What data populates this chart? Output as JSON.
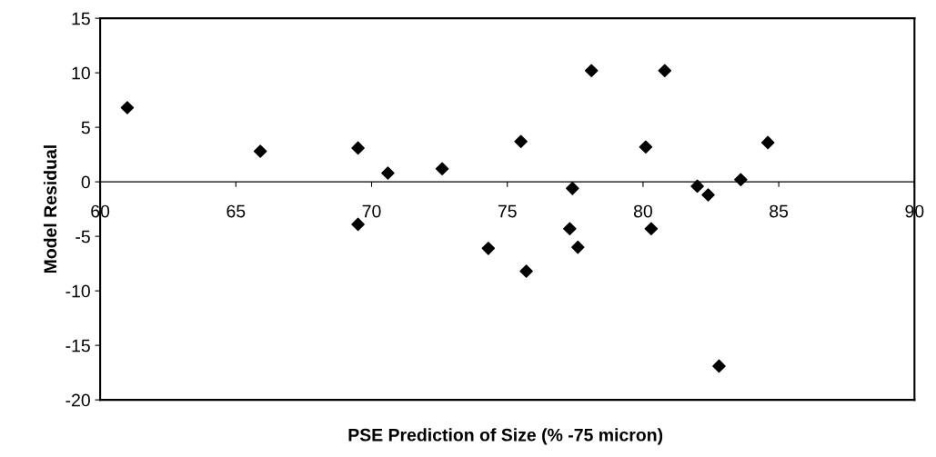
{
  "chart_data": {
    "type": "scatter",
    "xlabel": "PSE Prediction of Size (% -75 micron)",
    "ylabel": "Model Residual",
    "x": [
      61.0,
      65.9,
      69.5,
      70.6,
      72.6,
      69.5,
      75.5,
      78.1,
      80.8,
      80.1,
      84.6,
      77.4,
      82.0,
      82.4,
      83.6,
      74.3,
      75.7,
      77.3,
      77.6,
      80.3,
      82.8
    ],
    "values": [
      6.8,
      2.8,
      3.1,
      0.8,
      1.2,
      -3.9,
      3.7,
      10.2,
      10.2,
      3.2,
      3.6,
      -0.6,
      -0.4,
      -1.2,
      0.2,
      -6.1,
      -8.2,
      -4.3,
      -6.0,
      -4.3,
      -16.9
    ],
    "color": "#000000",
    "marker": "diamond",
    "grid": false,
    "legend": false,
    "xlim": [
      60,
      90
    ],
    "ylim": [
      -20,
      15
    ],
    "xticks": [
      60,
      65,
      70,
      75,
      80,
      85,
      90
    ],
    "yticks": [
      -20,
      -15,
      -10,
      -5,
      0,
      5,
      10,
      15
    ]
  }
}
